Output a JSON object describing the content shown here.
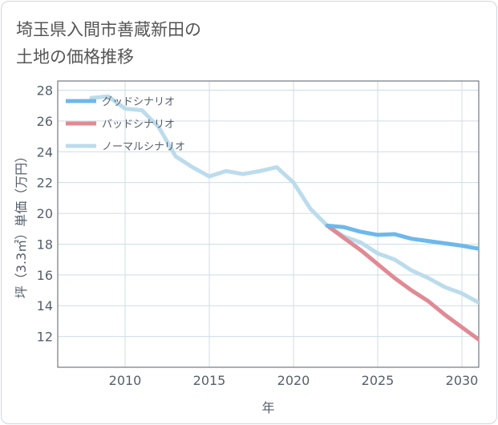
{
  "title_lines": [
    "埼玉県入間市善蔵新田の",
    "土地の価格推移"
  ],
  "colors": {
    "good": "#6db8ec",
    "bad": "#e08a94",
    "normal": "#bcdcec",
    "grid": "#cfdde6",
    "axis": "#555f6b"
  },
  "chart_data": {
    "type": "line",
    "title": "埼玉県入間市善蔵新田の土地の価格推移",
    "xlabel": "年",
    "ylabel": "坪（3.3㎡）単価（万円）",
    "xlim": [
      2006,
      2031
    ],
    "ylim": [
      10,
      28.6
    ],
    "xticks": [
      2010,
      2015,
      2020,
      2025,
      2030
    ],
    "yticks": [
      12,
      14,
      16,
      18,
      20,
      22,
      24,
      26,
      28
    ],
    "grid": true,
    "legend_position": "top-left",
    "series": [
      {
        "name": "グッドシナリオ",
        "color": "#6db8ec",
        "x": [
          2022,
          2023,
          2024,
          2025,
          2026,
          2027,
          2028,
          2029,
          2030,
          2031
        ],
        "y": [
          19.2,
          19.1,
          18.8,
          18.6,
          18.65,
          18.35,
          18.2,
          18.05,
          17.9,
          17.7
        ]
      },
      {
        "name": "バッドシナリオ",
        "color": "#e08a94",
        "x": [
          2022,
          2023,
          2024,
          2025,
          2026,
          2027,
          2028,
          2029,
          2030,
          2031
        ],
        "y": [
          19.2,
          18.4,
          17.6,
          16.7,
          15.8,
          15.0,
          14.3,
          13.4,
          12.6,
          11.8
        ]
      },
      {
        "name": "ノーマルシナリオ",
        "color": "#bcdcec",
        "x": [
          2008,
          2009,
          2010,
          2011,
          2012,
          2013,
          2014,
          2015,
          2016,
          2017,
          2018,
          2019,
          2020,
          2021,
          2022,
          2023,
          2024,
          2025,
          2026,
          2027,
          2028,
          2029,
          2030,
          2031
        ],
        "y": [
          27.5,
          27.6,
          26.8,
          26.7,
          25.6,
          23.7,
          23.0,
          22.4,
          22.75,
          22.55,
          22.75,
          23.0,
          22.0,
          20.3,
          19.2,
          18.5,
          18.1,
          17.4,
          17.0,
          16.3,
          15.8,
          15.2,
          14.8,
          14.2
        ]
      }
    ]
  }
}
